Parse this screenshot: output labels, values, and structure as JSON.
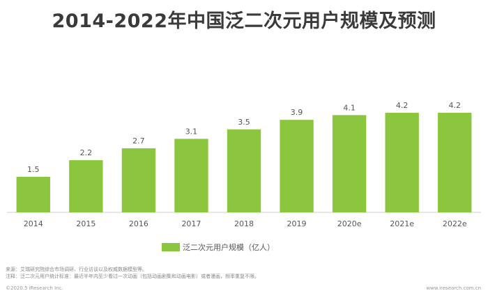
{
  "chart_data": {
    "type": "bar",
    "title": "2014-2022年中国泛二次元用户规模及预测",
    "categories": [
      "2014",
      "2015",
      "2016",
      "2017",
      "2018",
      "2019",
      "2020e",
      "2021e",
      "2022e"
    ],
    "series": [
      {
        "name": "泛二次元用户规模（亿人）",
        "values": [
          1.5,
          2.2,
          2.7,
          3.1,
          3.5,
          3.9,
          4.1,
          4.2,
          4.2
        ]
      }
    ],
    "value_labels": [
      "1.5",
      "2.2",
      "2.7",
      "3.1",
      "3.5",
      "3.9",
      "4.1",
      "4.2",
      "4.2"
    ],
    "ylim": [
      0,
      4.55
    ],
    "grid": false,
    "legend_position": "bottom-center",
    "bar_color": "#8cc63f"
  },
  "footer": {
    "source": "来源：艾瑞研究院综合市场调研、行业访谈以及权威数据模型等。",
    "note": "注释：泛二次元用户统计标准：最近半年内至少看过一次动画（包括动画剧集和动画电影）或者漫画，频率重复不限。",
    "copyright": "©2020.5 iResearch Inc.",
    "site": "www.iresearch.com.cn"
  }
}
